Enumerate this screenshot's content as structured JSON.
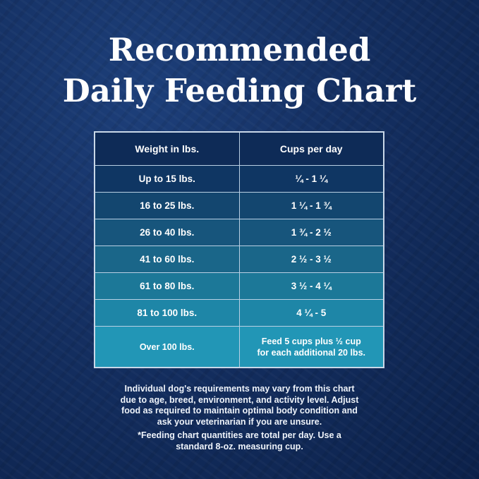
{
  "title": {
    "line1": "Recommended",
    "line2": "Daily Feeding Chart"
  },
  "table": {
    "headers": [
      "Weight in lbs.",
      "Cups per day"
    ],
    "rows": [
      {
        "weight": "Up to 15 lbs.",
        "cups": "¼ - 1 ¼",
        "color": "#0f3663"
      },
      {
        "weight": "16 to 25 lbs.",
        "cups": "1 ¼  - 1 ¾",
        "color": "#13466f"
      },
      {
        "weight": "26 to 40 lbs.",
        "cups": "1 ¾  - 2 ½",
        "color": "#17557c"
      },
      {
        "weight": "41 to 60 lbs.",
        "cups": "2 ½  - 3 ½",
        "color": "#1a6689"
      },
      {
        "weight": "61 to 80 lbs.",
        "cups": "3 ½  - 4 ¼",
        "color": "#1c7898"
      },
      {
        "weight": "81 to 100 lbs.",
        "cups": "4 ¼  - 5",
        "color": "#1e86a7"
      },
      {
        "weight": "Over 100 lbs.",
        "cups": "Feed 5 cups plus ½ cup for each additional 20 lbs.",
        "color": "#2296b6"
      }
    ]
  },
  "notes": {
    "main": "Individual dog's requirements may vary from this chart due to age, breed, environment, and activity level. Adjust food as required to maintain optimal body condition and ask your veterinarian if you are unsure.",
    "footnote": "*Feeding chart quantities are total per day. Use a standard 8-oz. measuring cup."
  }
}
